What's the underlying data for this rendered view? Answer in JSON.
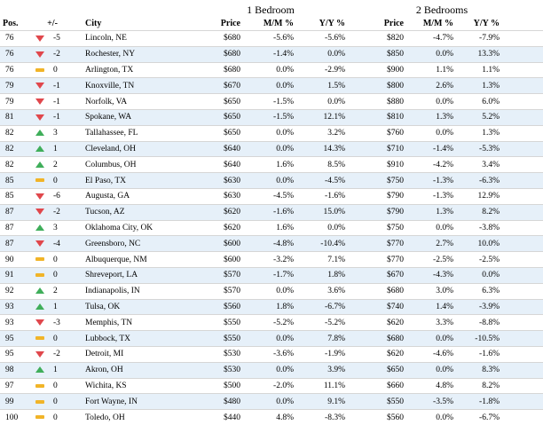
{
  "headers": {
    "group_1br": "1 Bedroom",
    "group_2br": "2 Bedrooms",
    "pos": "Pos.",
    "change": "+/-",
    "city": "City",
    "price_1br": "Price",
    "mm_1br": "M/M %",
    "yy_1br": "Y/Y %",
    "price_2br": "Price",
    "mm_2br": "M/M %",
    "yy_2br": "Y/Y %"
  },
  "colors": {
    "up": "#3fae5a",
    "down": "#e0474c",
    "flat": "#f1b428",
    "row_alt": "#e6f0f9"
  },
  "rows": [
    {
      "pos": "76",
      "dir": "down",
      "change": "-5",
      "city": "Lincoln, NE",
      "price1": "$680",
      "mm1": "-5.6%",
      "yy1": "-5.6%",
      "price2": "$820",
      "mm2": "-4.7%",
      "yy2": "-7.9%"
    },
    {
      "pos": "76",
      "dir": "down",
      "change": "-2",
      "city": "Rochester, NY",
      "price1": "$680",
      "mm1": "-1.4%",
      "yy1": "0.0%",
      "price2": "$850",
      "mm2": "0.0%",
      "yy2": "13.3%"
    },
    {
      "pos": "76",
      "dir": "flat",
      "change": "0",
      "city": "Arlington, TX",
      "price1": "$680",
      "mm1": "0.0%",
      "yy1": "-2.9%",
      "price2": "$900",
      "mm2": "1.1%",
      "yy2": "1.1%"
    },
    {
      "pos": "79",
      "dir": "down",
      "change": "-1",
      "city": "Knoxville, TN",
      "price1": "$670",
      "mm1": "0.0%",
      "yy1": "1.5%",
      "price2": "$800",
      "mm2": "2.6%",
      "yy2": "1.3%"
    },
    {
      "pos": "79",
      "dir": "down",
      "change": "-1",
      "city": "Norfolk, VA",
      "price1": "$650",
      "mm1": "-1.5%",
      "yy1": "0.0%",
      "price2": "$880",
      "mm2": "0.0%",
      "yy2": "6.0%"
    },
    {
      "pos": "81",
      "dir": "down",
      "change": "-1",
      "city": "Spokane, WA",
      "price1": "$650",
      "mm1": "-1.5%",
      "yy1": "12.1%",
      "price2": "$810",
      "mm2": "1.3%",
      "yy2": "5.2%"
    },
    {
      "pos": "82",
      "dir": "up",
      "change": "3",
      "city": "Tallahassee, FL",
      "price1": "$650",
      "mm1": "0.0%",
      "yy1": "3.2%",
      "price2": "$760",
      "mm2": "0.0%",
      "yy2": "1.3%"
    },
    {
      "pos": "82",
      "dir": "up",
      "change": "1",
      "city": "Cleveland, OH",
      "price1": "$640",
      "mm1": "0.0%",
      "yy1": "14.3%",
      "price2": "$710",
      "mm2": "-1.4%",
      "yy2": "-5.3%"
    },
    {
      "pos": "82",
      "dir": "up",
      "change": "2",
      "city": "Columbus, OH",
      "price1": "$640",
      "mm1": "1.6%",
      "yy1": "8.5%",
      "price2": "$910",
      "mm2": "-4.2%",
      "yy2": "3.4%"
    },
    {
      "pos": "85",
      "dir": "flat",
      "change": "0",
      "city": "El Paso, TX",
      "price1": "$630",
      "mm1": "0.0%",
      "yy1": "-4.5%",
      "price2": "$750",
      "mm2": "-1.3%",
      "yy2": "-6.3%"
    },
    {
      "pos": "85",
      "dir": "down",
      "change": "-6",
      "city": "Augusta, GA",
      "price1": "$630",
      "mm1": "-4.5%",
      "yy1": "-1.6%",
      "price2": "$790",
      "mm2": "-1.3%",
      "yy2": "12.9%"
    },
    {
      "pos": "87",
      "dir": "down",
      "change": "-2",
      "city": "Tucson, AZ",
      "price1": "$620",
      "mm1": "-1.6%",
      "yy1": "15.0%",
      "price2": "$790",
      "mm2": "1.3%",
      "yy2": "8.2%"
    },
    {
      "pos": "87",
      "dir": "up",
      "change": "3",
      "city": "Oklahoma City, OK",
      "price1": "$620",
      "mm1": "1.6%",
      "yy1": "0.0%",
      "price2": "$750",
      "mm2": "0.0%",
      "yy2": "-3.8%"
    },
    {
      "pos": "87",
      "dir": "down",
      "change": "-4",
      "city": "Greensboro, NC",
      "price1": "$600",
      "mm1": "-4.8%",
      "yy1": "-10.4%",
      "price2": "$770",
      "mm2": "2.7%",
      "yy2": "10.0%"
    },
    {
      "pos": "90",
      "dir": "flat",
      "change": "0",
      "city": "Albuquerque, NM",
      "price1": "$600",
      "mm1": "-3.2%",
      "yy1": "7.1%",
      "price2": "$770",
      "mm2": "-2.5%",
      "yy2": "-2.5%"
    },
    {
      "pos": "91",
      "dir": "flat",
      "change": "0",
      "city": "Shreveport, LA",
      "price1": "$570",
      "mm1": "-1.7%",
      "yy1": "1.8%",
      "price2": "$670",
      "mm2": "-4.3%",
      "yy2": "0.0%"
    },
    {
      "pos": "92",
      "dir": "up",
      "change": "2",
      "city": "Indianapolis, IN",
      "price1": "$570",
      "mm1": "0.0%",
      "yy1": "3.6%",
      "price2": "$680",
      "mm2": "3.0%",
      "yy2": "6.3%"
    },
    {
      "pos": "93",
      "dir": "up",
      "change": "1",
      "city": "Tulsa, OK",
      "price1": "$560",
      "mm1": "1.8%",
      "yy1": "-6.7%",
      "price2": "$740",
      "mm2": "1.4%",
      "yy2": "-3.9%"
    },
    {
      "pos": "93",
      "dir": "down",
      "change": "-3",
      "city": "Memphis, TN",
      "price1": "$550",
      "mm1": "-5.2%",
      "yy1": "-5.2%",
      "price2": "$620",
      "mm2": "3.3%",
      "yy2": "-8.8%"
    },
    {
      "pos": "95",
      "dir": "flat",
      "change": "0",
      "city": "Lubbock, TX",
      "price1": "$550",
      "mm1": "0.0%",
      "yy1": "7.8%",
      "price2": "$680",
      "mm2": "0.0%",
      "yy2": "-10.5%"
    },
    {
      "pos": "95",
      "dir": "down",
      "change": "-2",
      "city": "Detroit, MI",
      "price1": "$530",
      "mm1": "-3.6%",
      "yy1": "-1.9%",
      "price2": "$620",
      "mm2": "-4.6%",
      "yy2": "-1.6%"
    },
    {
      "pos": "98",
      "dir": "up",
      "change": "1",
      "city": "Akron, OH",
      "price1": "$530",
      "mm1": "0.0%",
      "yy1": "3.9%",
      "price2": "$650",
      "mm2": "0.0%",
      "yy2": "8.3%"
    },
    {
      "pos": "97",
      "dir": "flat",
      "change": "0",
      "city": "Wichita, KS",
      "price1": "$500",
      "mm1": "-2.0%",
      "yy1": "11.1%",
      "price2": "$660",
      "mm2": "4.8%",
      "yy2": "8.2%"
    },
    {
      "pos": "99",
      "dir": "flat",
      "change": "0",
      "city": "Fort Wayne, IN",
      "price1": "$480",
      "mm1": "0.0%",
      "yy1": "9.1%",
      "price2": "$550",
      "mm2": "-3.5%",
      "yy2": "-1.8%"
    },
    {
      "pos": "100",
      "dir": "flat",
      "change": "0",
      "city": "Toledo, OH",
      "price1": "$440",
      "mm1": "4.8%",
      "yy1": "-8.3%",
      "price2": "$560",
      "mm2": "0.0%",
      "yy2": "-6.7%"
    }
  ]
}
